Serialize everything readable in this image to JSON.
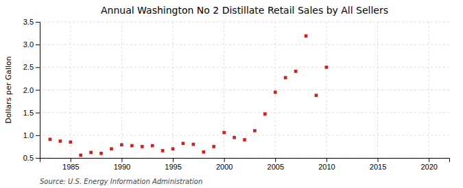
{
  "chart_data": {
    "type": "scatter",
    "title": "Annual Washington No 2 Distillate Retail Sales by All Sellers",
    "ylabel": "Dollars per Gallon",
    "annotation": "Source: U.S. Energy Information Administration",
    "color": "#cc2222",
    "marker": "square",
    "grid": true,
    "x": [
      1983,
      1984,
      1985,
      1986,
      1987,
      1988,
      1989,
      1990,
      1991,
      1992,
      1993,
      1994,
      1995,
      1996,
      1997,
      1998,
      1999,
      2000,
      2001,
      2002,
      2003,
      2004,
      2005,
      2006,
      2007,
      2008,
      2009,
      2010
    ],
    "values": [
      0.91,
      0.87,
      0.85,
      0.56,
      0.62,
      0.6,
      0.7,
      0.79,
      0.77,
      0.75,
      0.77,
      0.66,
      0.7,
      0.82,
      0.8,
      0.63,
      0.75,
      1.06,
      0.95,
      0.9,
      1.1,
      1.47,
      1.95,
      2.27,
      2.41,
      3.19,
      1.88,
      2.5
    ],
    "xlim": [
      1982,
      2022
    ],
    "ylim": [
      0.5,
      3.5
    ],
    "xticks": [
      1985,
      1990,
      1995,
      2000,
      2005,
      2010,
      2015,
      2020
    ],
    "yticks": [
      0.5,
      {
        "value": 1.0,
        "label": "1.0"
      },
      1.5,
      {
        "value": 2.0,
        "label": "2.0"
      },
      2.5,
      {
        "value": 3.0,
        "label": "3.0"
      },
      3.5
    ]
  }
}
